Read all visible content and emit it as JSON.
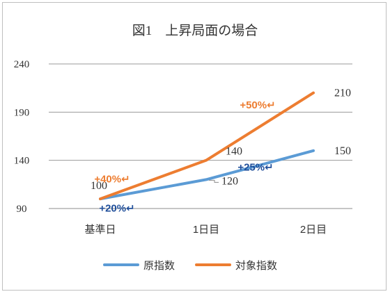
{
  "chart_data": {
    "type": "line",
    "title": "図1　上昇局面の場合",
    "categories": [
      "基準日",
      "1日目",
      "2日目"
    ],
    "yticks": [
      90,
      140,
      190,
      240
    ],
    "ylim": [
      90,
      240
    ],
    "grid": true,
    "legend_position": "bottom",
    "series": [
      {
        "name": "原指数",
        "color": "#5B9BD5",
        "values": [
          100,
          120,
          150
        ],
        "value_labels": [
          "",
          "120",
          "150"
        ],
        "change_labels": [
          "+20%↵",
          "+25%↵"
        ],
        "change_color": "#1F4E9A"
      },
      {
        "name": "対象指数",
        "color": "#ED7D31",
        "values": [
          100,
          140,
          210
        ],
        "value_labels": [
          "100",
          "140",
          "210"
        ],
        "change_labels": [
          "+40%↵",
          "+50%↵"
        ],
        "change_color": "#ED7D31"
      }
    ]
  }
}
